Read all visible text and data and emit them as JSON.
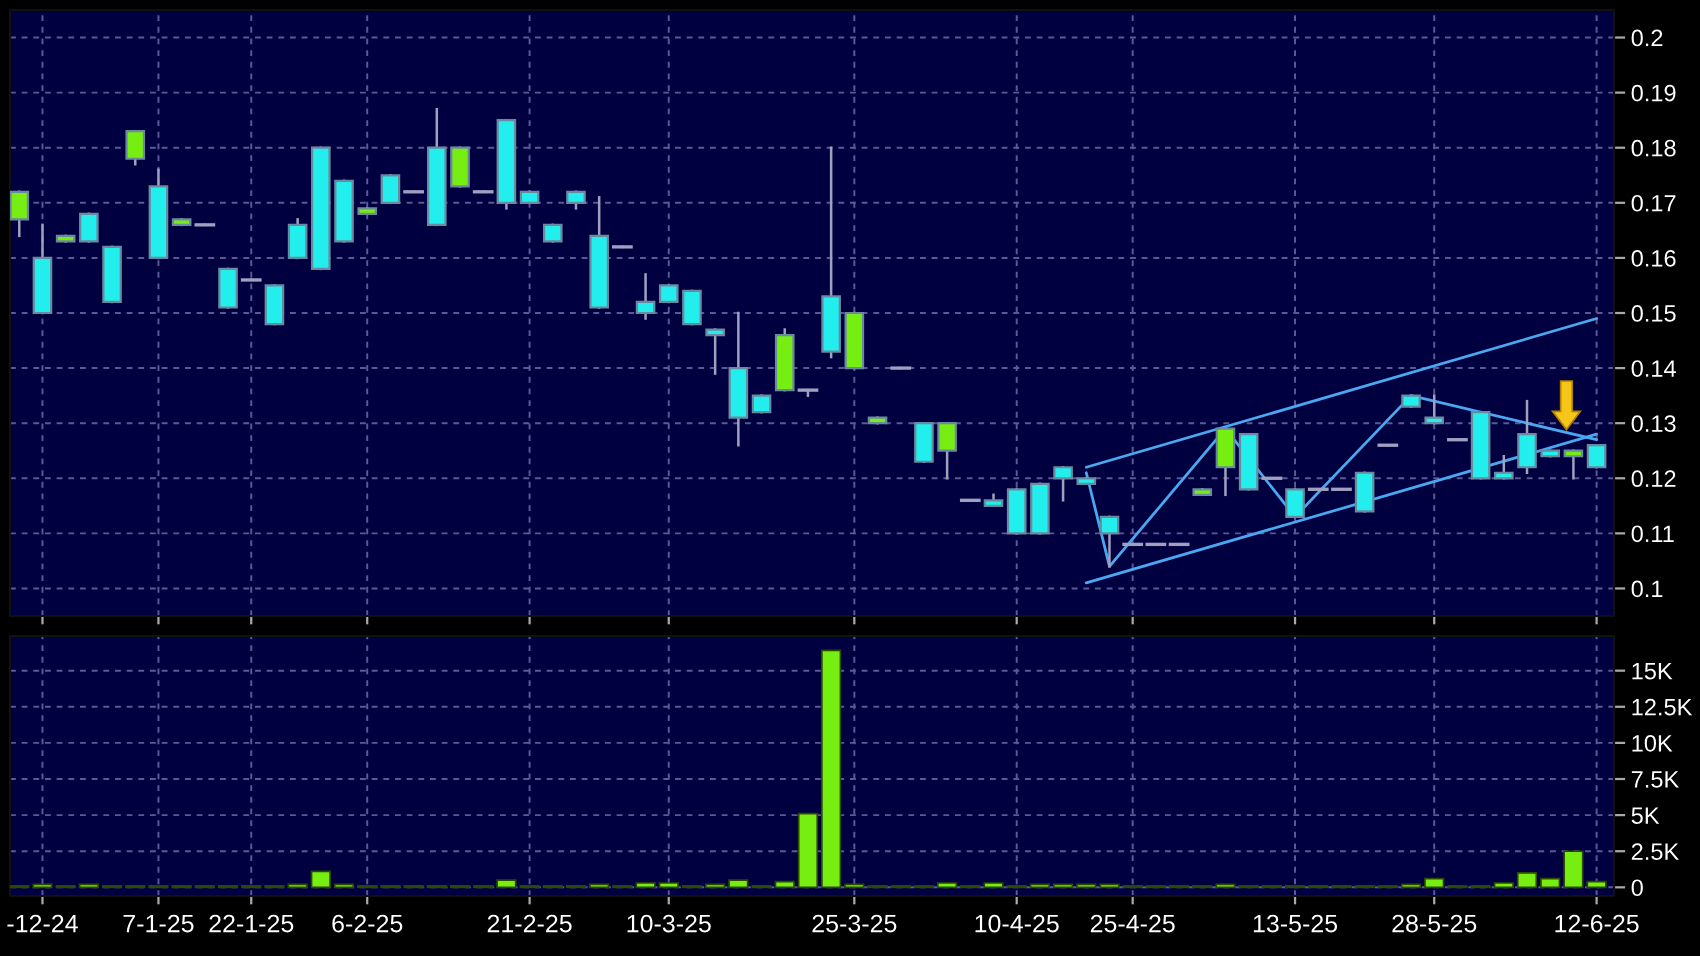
{
  "chart_data": [
    {
      "type": "candlestick",
      "categories": [
        null,
        null,
        null,
        null,
        null,
        null,
        null,
        null,
        null,
        null,
        null,
        null,
        null,
        null,
        null,
        null,
        null,
        null,
        null,
        null,
        null,
        null,
        null,
        null,
        null,
        null,
        null,
        null,
        null,
        null,
        null,
        null,
        null,
        null,
        null,
        null,
        null,
        null,
        null,
        null,
        null,
        null,
        null,
        null,
        null,
        null,
        null,
        null,
        null,
        null,
        null,
        null,
        null,
        null,
        null,
        null,
        null,
        null,
        null,
        null,
        null,
        null,
        null,
        null,
        null,
        null,
        null,
        null,
        null
      ],
      "ohlc": [
        [
          0.167,
          0.172,
          0.164,
          0.172
        ],
        [
          0.16,
          0.166,
          0.15,
          0.15
        ],
        [
          0.163,
          0.164,
          0.163,
          0.164
        ],
        [
          0.168,
          0.168,
          0.163,
          0.163
        ],
        [
          0.162,
          0.162,
          0.152,
          0.152
        ],
        [
          0.178,
          0.183,
          0.177,
          0.183
        ],
        [
          0.173,
          0.176,
          0.16,
          0.16
        ],
        [
          0.166,
          0.167,
          0.166,
          0.167
        ],
        [
          0.166,
          0.166,
          0.166,
          0.166
        ],
        [
          0.158,
          0.158,
          0.151,
          0.151
        ],
        [
          0.156,
          0.156,
          0.156,
          0.156
        ],
        [
          0.155,
          0.155,
          0.148,
          0.148
        ],
        [
          0.166,
          0.167,
          0.16,
          0.16
        ],
        [
          0.18,
          0.18,
          0.158,
          0.158
        ],
        [
          0.174,
          0.174,
          0.163,
          0.163
        ],
        [
          0.168,
          0.169,
          0.168,
          0.169
        ],
        [
          0.175,
          0.175,
          0.17,
          0.17
        ],
        [
          0.172,
          0.172,
          0.172,
          0.172
        ],
        [
          0.18,
          0.187,
          0.166,
          0.166
        ],
        [
          0.173,
          0.18,
          0.173,
          0.18
        ],
        [
          0.172,
          0.172,
          0.172,
          0.172
        ],
        [
          0.185,
          0.185,
          0.169,
          0.17
        ],
        [
          0.172,
          0.172,
          0.17,
          0.17
        ],
        [
          0.166,
          0.166,
          0.163,
          0.163
        ],
        [
          0.172,
          0.172,
          0.169,
          0.17
        ],
        [
          0.164,
          0.171,
          0.151,
          0.151
        ],
        [
          0.162,
          0.162,
          0.162,
          0.162
        ],
        [
          0.152,
          0.157,
          0.149,
          0.15
        ],
        [
          0.155,
          0.155,
          0.152,
          0.152
        ],
        [
          0.154,
          0.154,
          0.148,
          0.148
        ],
        [
          0.147,
          0.147,
          0.139,
          0.146
        ],
        [
          0.14,
          0.15,
          0.126,
          0.131
        ],
        [
          0.135,
          0.135,
          0.132,
          0.132
        ],
        [
          0.136,
          0.147,
          0.136,
          0.146
        ],
        [
          0.136,
          0.136,
          0.135,
          0.136
        ],
        [
          0.153,
          0.18,
          0.142,
          0.143
        ],
        [
          0.14,
          0.15,
          0.14,
          0.15
        ],
        [
          0.13,
          0.131,
          0.13,
          0.131
        ],
        [
          0.14,
          0.14,
          0.14,
          0.14
        ],
        [
          0.13,
          0.13,
          0.123,
          0.123
        ],
        [
          0.125,
          0.13,
          0.12,
          0.13
        ],
        [
          0.116,
          0.116,
          0.116,
          0.116
        ],
        [
          0.116,
          0.117,
          0.115,
          0.115
        ],
        [
          0.118,
          0.118,
          0.11,
          0.11
        ],
        [
          0.119,
          0.119,
          0.11,
          0.11
        ],
        [
          0.122,
          0.122,
          0.116,
          0.12
        ],
        [
          0.12,
          0.12,
          0.119,
          0.119
        ],
        [
          0.113,
          0.113,
          0.104,
          0.11
        ],
        [
          0.108,
          0.108,
          0.108,
          0.108
        ],
        [
          0.108,
          0.108,
          0.108,
          0.108
        ],
        [
          0.108,
          0.108,
          0.108,
          0.108
        ],
        [
          0.117,
          0.118,
          0.117,
          0.118
        ],
        [
          0.122,
          0.129,
          0.117,
          0.129
        ],
        [
          0.128,
          0.128,
          0.118,
          0.118
        ],
        [
          0.12,
          0.12,
          0.12,
          0.12
        ],
        [
          0.118,
          0.118,
          0.113,
          0.113
        ],
        [
          0.118,
          0.118,
          0.118,
          0.118
        ],
        [
          0.118,
          0.118,
          0.118,
          0.118
        ],
        [
          0.121,
          0.121,
          0.114,
          0.114
        ],
        [
          0.126,
          0.126,
          0.126,
          0.126
        ],
        [
          0.135,
          0.135,
          0.133,
          0.133
        ],
        [
          0.131,
          0.135,
          0.13,
          0.13
        ],
        [
          0.127,
          0.127,
          0.127,
          0.127
        ],
        [
          0.132,
          0.132,
          0.12,
          0.12
        ],
        [
          0.121,
          0.124,
          0.12,
          0.12
        ],
        [
          0.128,
          0.134,
          0.121,
          0.122
        ],
        [
          0.125,
          0.125,
          0.124,
          0.124
        ],
        [
          0.124,
          0.125,
          0.12,
          0.125
        ],
        [
          0.126,
          0.126,
          0.122,
          0.122
        ]
      ],
      "colors": [
        "#77ee11",
        "#22eeee",
        "#77ee11",
        "#22eeee",
        "#22eeee",
        "#77ee11",
        "#22eeee",
        "#77ee11",
        "#a0a0c0",
        "#22eeee",
        "#a0a0c0",
        "#22eeee",
        "#22eeee",
        "#22eeee",
        "#22eeee",
        "#77ee11",
        "#22eeee",
        "#a0a0c0",
        "#22eeee",
        "#77ee11",
        "#a0a0c0",
        "#22eeee",
        "#22eeee",
        "#22eeee",
        "#22eeee",
        "#22eeee",
        "#a0a0c0",
        "#22eeee",
        "#22eeee",
        "#22eeee",
        "#22eeee",
        "#22eeee",
        "#22eeee",
        "#77ee11",
        "#a0a0c0",
        "#22eeee",
        "#77ee11",
        "#77ee11",
        "#a0a0c0",
        "#22eeee",
        "#77ee11",
        "#a0a0c0",
        "#22eeee",
        "#22eeee",
        "#22eeee",
        "#22eeee",
        "#22eeee",
        "#22eeee",
        "#a0a0c0",
        "#a0a0c0",
        "#a0a0c0",
        "#77ee11",
        "#77ee11",
        "#22eeee",
        "#a0a0c0",
        "#22eeee",
        "#a0a0c0",
        "#a0a0c0",
        "#22eeee",
        "#a0a0c0",
        "#22eeee",
        "#22eeee",
        "#a0a0c0",
        "#22eeee",
        "#22eeee",
        "#22eeee",
        "#22eeee",
        "#77ee11",
        "#22eeee"
      ],
      "series": [
        {
          "type": "line",
          "color": "#4aa8f0",
          "values": [
            null,
            null,
            null,
            null,
            null,
            null,
            null,
            null,
            null,
            null,
            null,
            null,
            null,
            null,
            null,
            null,
            null,
            null,
            null,
            null,
            null,
            null,
            null,
            null,
            null,
            null,
            null,
            null,
            null,
            null,
            null,
            null,
            null,
            null,
            null,
            null,
            null,
            null,
            null,
            null,
            null,
            null,
            null,
            null,
            null,
            null,
            0.122,
            null,
            null,
            null,
            null,
            null,
            null,
            null,
            null,
            null,
            null,
            null,
            null,
            null,
            null,
            null,
            null,
            null,
            null,
            null,
            null,
            null,
            0.149
          ]
        },
        {
          "type": "line",
          "color": "#4aa8f0",
          "values": [
            null,
            null,
            null,
            null,
            null,
            null,
            null,
            null,
            null,
            null,
            null,
            null,
            null,
            null,
            null,
            null,
            null,
            null,
            null,
            null,
            null,
            null,
            null,
            null,
            null,
            null,
            null,
            null,
            null,
            null,
            null,
            null,
            null,
            null,
            null,
            null,
            null,
            null,
            null,
            null,
            null,
            null,
            null,
            null,
            null,
            null,
            0.101,
            null,
            null,
            null,
            null,
            null,
            null,
            null,
            null,
            null,
            null,
            null,
            null,
            null,
            null,
            null,
            null,
            null,
            null,
            null,
            null,
            null,
            0.128
          ]
        },
        {
          "type": "line",
          "color": "#4aa8f0",
          "values": [
            null,
            null,
            null,
            null,
            null,
            null,
            null,
            null,
            null,
            null,
            null,
            null,
            null,
            null,
            null,
            null,
            null,
            null,
            null,
            null,
            null,
            null,
            null,
            null,
            null,
            null,
            null,
            null,
            null,
            null,
            null,
            null,
            null,
            null,
            null,
            null,
            null,
            null,
            null,
            null,
            null,
            null,
            null,
            null,
            null,
            null,
            0.121,
            0.104,
            null,
            null,
            null,
            null,
            0.129,
            null,
            null,
            0.113,
            null,
            null,
            null,
            null,
            0.135,
            null,
            null,
            null,
            null,
            null,
            null,
            null,
            0.127
          ]
        }
      ],
      "ylim": [
        0.095,
        0.205
      ],
      "yticks": [
        0.1,
        0.11,
        0.12,
        0.13,
        0.14,
        0.15,
        0.16,
        0.17,
        0.18,
        0.19,
        0.2
      ],
      "grid": true,
      "tick_labels": "y"
    },
    {
      "type": "bar",
      "categories": [
        null,
        "-12-24",
        null,
        null,
        null,
        null,
        "7-1-25",
        null,
        null,
        null,
        "22-1-25",
        null,
        null,
        null,
        null,
        "6-2-25",
        null,
        null,
        null,
        null,
        null,
        null,
        "21-2-25",
        null,
        null,
        null,
        null,
        null,
        "10-3-25",
        null,
        null,
        null,
        null,
        null,
        null,
        null,
        "25-3-25",
        null,
        null,
        null,
        null,
        null,
        null,
        "10-4-25",
        null,
        null,
        null,
        null,
        "25-4-25",
        null,
        null,
        null,
        null,
        null,
        null,
        "13-5-25",
        null,
        null,
        null,
        null,
        null,
        "28-5-25",
        null,
        null,
        null,
        null,
        null,
        null,
        "12-6-25"
      ],
      "values": [
        100,
        200,
        100,
        200,
        100,
        100,
        100,
        100,
        100,
        100,
        100,
        100,
        200,
        1100,
        200,
        100,
        100,
        100,
        100,
        100,
        100,
        500,
        100,
        100,
        100,
        200,
        100,
        300,
        300,
        100,
        200,
        500,
        100,
        400,
        5100,
        16400,
        200,
        100,
        100,
        100,
        300,
        100,
        300,
        100,
        200,
        200,
        200,
        200,
        100,
        100,
        100,
        100,
        200,
        100,
        100,
        100,
        100,
        100,
        100,
        100,
        200,
        600,
        100,
        100,
        300,
        1000,
        600,
        2500,
        400
      ],
      "color": "#77ee11",
      "ylim": [
        -600,
        17400
      ],
      "yticks": [
        0,
        {
          "value": 2500,
          "label": "2.5K"
        },
        {
          "value": 5000,
          "label": "5K"
        },
        {
          "value": 7500,
          "label": "7.5K"
        },
        {
          "value": 10000,
          "label": "10K"
        },
        {
          "value": 12500,
          "label": "12.5K"
        },
        {
          "value": 15000,
          "label": "15K"
        }
      ],
      "grid": true
    }
  ]
}
